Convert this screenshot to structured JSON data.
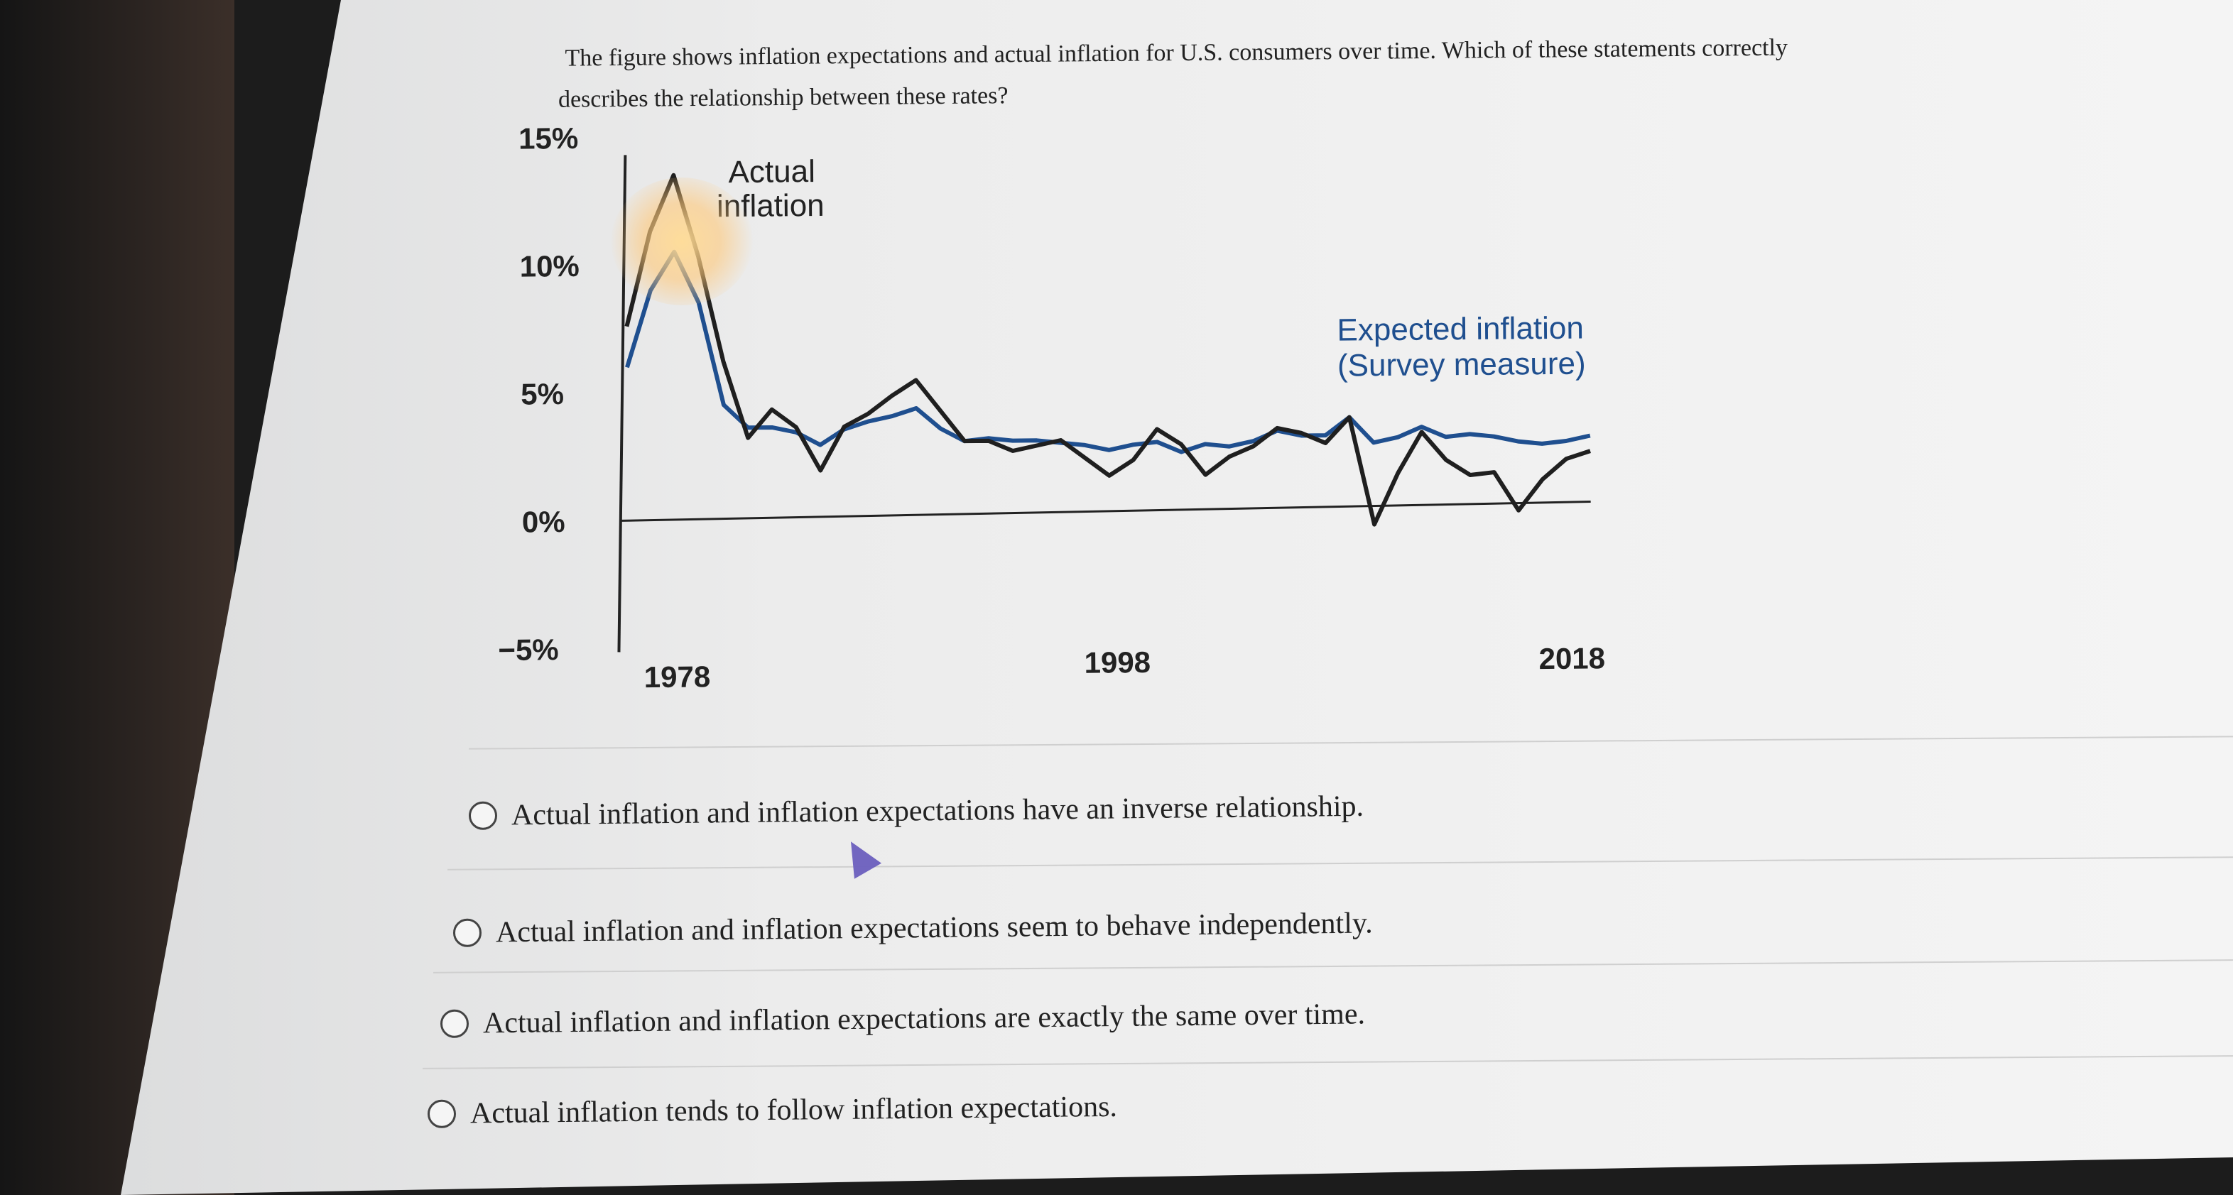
{
  "question": {
    "line1": "The figure shows inflation expectations and actual inflation for U.S. consumers over time. Which of these statements correctly",
    "line2": "describes the relationship between these rates?"
  },
  "chart_data": {
    "type": "line",
    "y_ticks": [
      "15%",
      "10%",
      "5%",
      "0%",
      "−5%"
    ],
    "x_ticks": [
      "1978",
      "1998",
      "2018"
    ],
    "ylim": [
      -5,
      15
    ],
    "series": [
      {
        "name": "Actual inflation",
        "color": "#1f1f1f",
        "x": [
          1978,
          1979,
          1980,
          1981,
          1982,
          1983,
          1984,
          1985,
          1986,
          1987,
          1988,
          1989,
          1990,
          1991,
          1992,
          1993,
          1994,
          1995,
          1996,
          1997,
          1998,
          1999,
          2000,
          2001,
          2002,
          2003,
          2004,
          2005,
          2006,
          2007,
          2008,
          2009,
          2010,
          2011,
          2012,
          2013,
          2014,
          2015,
          2016,
          2017,
          2018
        ],
        "y": [
          7.6,
          11.3,
          13.5,
          10.3,
          6.2,
          3.2,
          4.3,
          3.6,
          1.9,
          3.6,
          4.1,
          4.8,
          5.4,
          4.2,
          3.0,
          3.0,
          2.6,
          2.8,
          3.0,
          2.3,
          1.6,
          2.2,
          3.4,
          2.8,
          1.6,
          2.3,
          2.7,
          3.4,
          3.2,
          2.8,
          3.8,
          -0.4,
          1.6,
          3.2,
          2.1,
          1.5,
          1.6,
          0.1,
          1.3,
          2.1,
          2.4
        ]
      },
      {
        "name": "Expected inflation (Survey measure)",
        "color": "#1f4f8f",
        "x": [
          1978,
          1979,
          1980,
          1981,
          1982,
          1983,
          1984,
          1985,
          1986,
          1987,
          1988,
          1989,
          1990,
          1991,
          1992,
          1993,
          1994,
          1995,
          1996,
          1997,
          1998,
          1999,
          2000,
          2001,
          2002,
          2003,
          2004,
          2005,
          2006,
          2007,
          2008,
          2009,
          2010,
          2011,
          2012,
          2013,
          2014,
          2015,
          2016,
          2017,
          2018
        ],
        "y": [
          6.0,
          9.0,
          10.5,
          8.5,
          4.5,
          3.6,
          3.6,
          3.4,
          2.9,
          3.5,
          3.8,
          4.0,
          4.3,
          3.5,
          3.0,
          3.1,
          3.0,
          3.0,
          2.9,
          2.8,
          2.6,
          2.8,
          2.9,
          2.5,
          2.8,
          2.7,
          2.9,
          3.3,
          3.1,
          3.1,
          3.8,
          2.8,
          3.0,
          3.4,
          3.0,
          3.1,
          3.0,
          2.8,
          2.7,
          2.8,
          3.0
        ]
      }
    ]
  },
  "options": [
    {
      "label": "Actual inflation and inflation expectations have an inverse relationship."
    },
    {
      "label": "Actual inflation and inflation expectations seem to behave independently."
    },
    {
      "label": "Actual inflation and inflation expectations are exactly the same over time."
    },
    {
      "label": "Actual inflation tends to follow inflation expectations."
    }
  ]
}
